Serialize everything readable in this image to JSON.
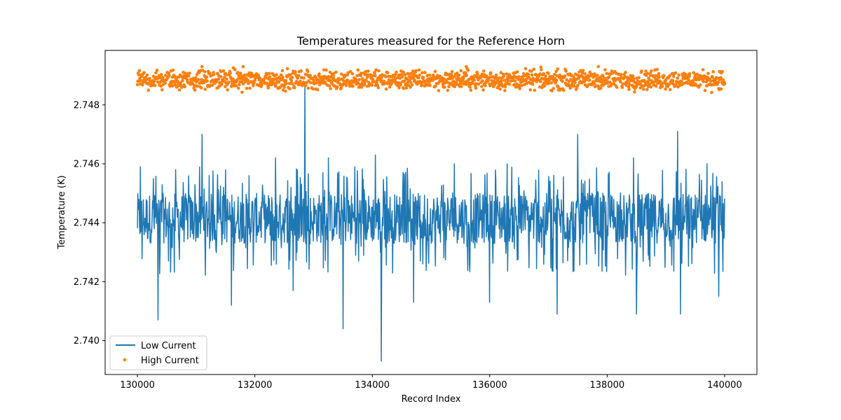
{
  "chart_data": {
    "type": "line",
    "title": "Temperatures measured for the Reference Horn",
    "xlabel": "Record Index",
    "ylabel": "Temperature (K)",
    "xlim": [
      129450,
      140550
    ],
    "ylim": [
      2.73885,
      2.74985
    ],
    "xticks": [
      130000,
      132000,
      134000,
      136000,
      138000,
      140000
    ],
    "yticks": [
      2.74,
      2.742,
      2.744,
      2.746,
      2.748
    ],
    "ytick_labels": [
      "2.740",
      "2.742",
      "2.744",
      "2.746",
      "2.748"
    ],
    "grid": false,
    "legend": "lower-left",
    "series": [
      {
        "name": "Low Current",
        "style": "line",
        "color": "#1f77b4",
        "x_range": [
          130000,
          140000
        ],
        "band": [
          2.7433,
          2.745
        ],
        "spikes": [
          {
            "x": 130050,
            "y": 2.7459
          },
          {
            "x": 130350,
            "y": 2.7459
          },
          {
            "x": 130650,
            "y": 2.7458
          },
          {
            "x": 131100,
            "y": 2.747
          },
          {
            "x": 131500,
            "y": 2.7458
          },
          {
            "x": 131900,
            "y": 2.7456
          },
          {
            "x": 132350,
            "y": 2.7462
          },
          {
            "x": 132850,
            "y": 2.7487
          },
          {
            "x": 133250,
            "y": 2.7462
          },
          {
            "x": 133700,
            "y": 2.7459
          },
          {
            "x": 134050,
            "y": 2.7463
          },
          {
            "x": 135400,
            "y": 2.746
          },
          {
            "x": 136300,
            "y": 2.746
          },
          {
            "x": 137150,
            "y": 2.7474
          },
          {
            "x": 137500,
            "y": 2.747
          },
          {
            "x": 138450,
            "y": 2.7462
          },
          {
            "x": 139200,
            "y": 2.7471
          },
          {
            "x": 139700,
            "y": 2.746
          },
          {
            "x": 130350,
            "y": 2.7407
          },
          {
            "x": 131600,
            "y": 2.7412
          },
          {
            "x": 132650,
            "y": 2.7417
          },
          {
            "x": 133500,
            "y": 2.7404
          },
          {
            "x": 134150,
            "y": 2.7393
          },
          {
            "x": 134700,
            "y": 2.7413
          },
          {
            "x": 136000,
            "y": 2.7413
          },
          {
            "x": 137150,
            "y": 2.7409
          },
          {
            "x": 138500,
            "y": 2.7409
          },
          {
            "x": 139250,
            "y": 2.7409
          },
          {
            "x": 139900,
            "y": 2.7415
          }
        ]
      },
      {
        "name": "High Current",
        "style": "scatter",
        "color": "#ff7f0e",
        "x_range": [
          130000,
          140000
        ],
        "band": [
          2.7486,
          2.7491
        ],
        "spikes": [
          {
            "x": 131100,
            "y": 2.7493
          },
          {
            "x": 131800,
            "y": 2.7493
          },
          {
            "x": 135600,
            "y": 2.7493
          },
          {
            "x": 137850,
            "y": 2.7493
          },
          {
            "x": 138850,
            "y": 2.7492
          }
        ]
      }
    ]
  }
}
